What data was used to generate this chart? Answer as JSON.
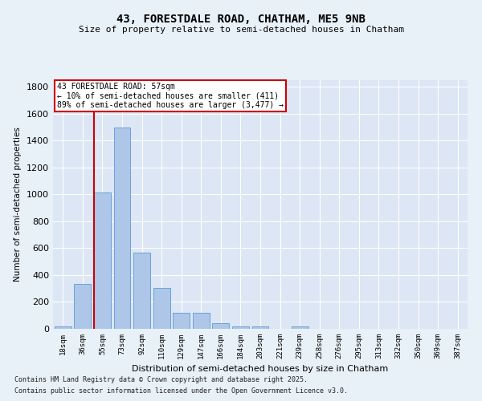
{
  "title_line1": "43, FORESTDALE ROAD, CHATHAM, ME5 9NB",
  "title_line2": "Size of property relative to semi-detached houses in Chatham",
  "xlabel": "Distribution of semi-detached houses by size in Chatham",
  "ylabel": "Number of semi-detached properties",
  "categories": [
    "18sqm",
    "36sqm",
    "55sqm",
    "73sqm",
    "92sqm",
    "110sqm",
    "129sqm",
    "147sqm",
    "166sqm",
    "184sqm",
    "203sqm",
    "221sqm",
    "239sqm",
    "258sqm",
    "276sqm",
    "295sqm",
    "313sqm",
    "332sqm",
    "350sqm",
    "369sqm",
    "387sqm"
  ],
  "values": [
    20,
    335,
    1015,
    1500,
    565,
    305,
    120,
    120,
    40,
    20,
    20,
    0,
    20,
    0,
    0,
    0,
    0,
    0,
    0,
    0,
    0
  ],
  "bar_color": "#aec6e8",
  "bar_edge_color": "#5b9bd5",
  "vline_color": "#cc0000",
  "annotation_text": "43 FORESTDALE ROAD: 57sqm\n← 10% of semi-detached houses are smaller (411)\n89% of semi-detached houses are larger (3,477) →",
  "annotation_box_color": "#ffffff",
  "annotation_box_edge_color": "#cc0000",
  "ylim": [
    0,
    1850
  ],
  "yticks": [
    0,
    200,
    400,
    600,
    800,
    1000,
    1200,
    1400,
    1600,
    1800
  ],
  "background_color": "#e8f0f8",
  "plot_background_color": "#dce6f4",
  "grid_color": "#ffffff",
  "footnote1": "Contains HM Land Registry data © Crown copyright and database right 2025.",
  "footnote2": "Contains public sector information licensed under the Open Government Licence v3.0."
}
